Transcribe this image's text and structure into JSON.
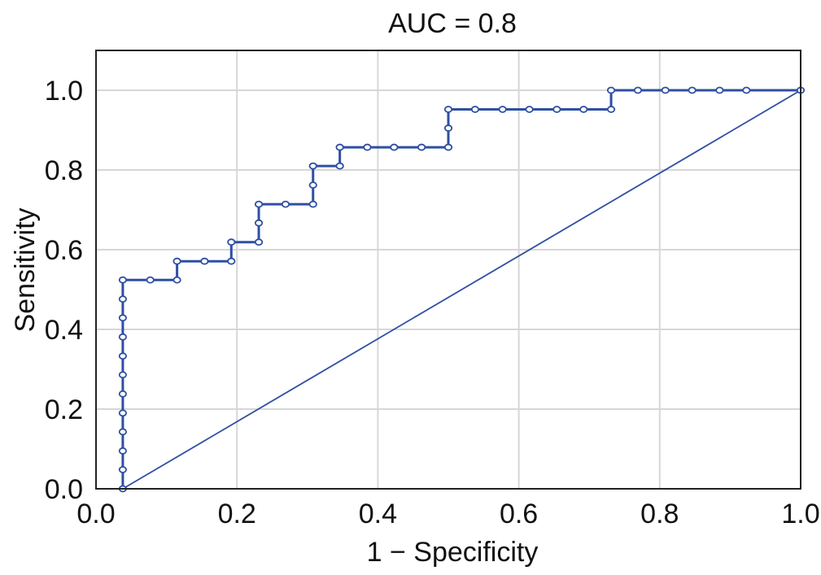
{
  "chart_data": {
    "type": "line",
    "title": "AUC = 0.8",
    "xlabel": "1 − Specificity",
    "ylabel": "Sensitivity",
    "xlim": [
      0.0,
      1.0
    ],
    "ylim": [
      0.0,
      1.1
    ],
    "grid": true,
    "x_ticks": [
      "0.0",
      "0.2",
      "0.4",
      "0.6",
      "0.8",
      "1.0"
    ],
    "y_ticks": [
      "0.0",
      "0.2",
      "0.4",
      "0.6",
      "0.8",
      "1.0"
    ],
    "series": [
      {
        "color": "#2f4fa3",
        "marker": "circle",
        "points": [
          [
            0.038,
            0.0
          ],
          [
            0.038,
            0.048
          ],
          [
            0.038,
            0.095
          ],
          [
            0.038,
            0.143
          ],
          [
            0.038,
            0.19
          ],
          [
            0.038,
            0.238
          ],
          [
            0.038,
            0.286
          ],
          [
            0.038,
            0.333
          ],
          [
            0.038,
            0.381
          ],
          [
            0.038,
            0.429
          ],
          [
            0.038,
            0.476
          ],
          [
            0.038,
            0.524
          ],
          [
            0.077,
            0.524
          ],
          [
            0.115,
            0.524
          ],
          [
            0.115,
            0.571
          ],
          [
            0.154,
            0.571
          ],
          [
            0.192,
            0.571
          ],
          [
            0.192,
            0.619
          ],
          [
            0.231,
            0.619
          ],
          [
            0.231,
            0.667
          ],
          [
            0.231,
            0.714
          ],
          [
            0.269,
            0.714
          ],
          [
            0.308,
            0.714
          ],
          [
            0.308,
            0.762
          ],
          [
            0.308,
            0.81
          ],
          [
            0.346,
            0.81
          ],
          [
            0.346,
            0.857
          ],
          [
            0.385,
            0.857
          ],
          [
            0.423,
            0.857
          ],
          [
            0.462,
            0.857
          ],
          [
            0.5,
            0.857
          ],
          [
            0.5,
            0.905
          ],
          [
            0.5,
            0.952
          ],
          [
            0.538,
            0.952
          ],
          [
            0.577,
            0.952
          ],
          [
            0.615,
            0.952
          ],
          [
            0.654,
            0.952
          ],
          [
            0.692,
            0.952
          ],
          [
            0.731,
            0.952
          ],
          [
            0.731,
            1.0
          ],
          [
            0.769,
            1.0
          ],
          [
            0.808,
            1.0
          ],
          [
            0.846,
            1.0
          ],
          [
            0.885,
            1.0
          ],
          [
            0.923,
            1.0
          ],
          [
            1.0,
            1.0
          ]
        ]
      },
      {
        "color": "#2f4fa3",
        "marker": "none",
        "points": [
          [
            0.038,
            0.0
          ],
          [
            1.0,
            1.0
          ]
        ]
      }
    ]
  }
}
